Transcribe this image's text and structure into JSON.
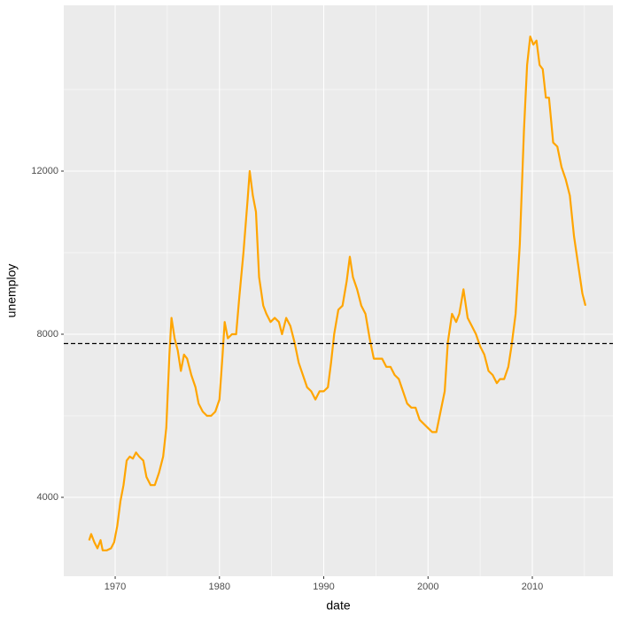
{
  "chart_data": {
    "type": "line",
    "x_label": "date",
    "y_label": "unemploy",
    "series": [
      {
        "color": "#FFA500",
        "x": [
          1967.5,
          1967.7,
          1968.0,
          1968.3,
          1968.6,
          1968.8,
          1969.2,
          1969.6,
          1969.9,
          1970.2,
          1970.5,
          1970.8,
          1971.1,
          1971.4,
          1971.7,
          1972.0,
          1972.3,
          1972.7,
          1973.0,
          1973.4,
          1973.8,
          1974.2,
          1974.6,
          1974.9,
          1975.2,
          1975.4,
          1975.7,
          1976.0,
          1976.3,
          1976.6,
          1976.9,
          1977.3,
          1977.7,
          1978.0,
          1978.4,
          1978.8,
          1979.2,
          1979.6,
          1980.0,
          1980.3,
          1980.5,
          1980.8,
          1981.2,
          1981.6,
          1981.9,
          1982.3,
          1982.7,
          1982.9,
          1983.2,
          1983.5,
          1983.8,
          1984.2,
          1984.5,
          1984.9,
          1985.3,
          1985.7,
          1986.0,
          1986.4,
          1986.8,
          1987.2,
          1987.6,
          1988.0,
          1988.4,
          1988.8,
          1989.2,
          1989.6,
          1990.0,
          1990.4,
          1990.7,
          1991.0,
          1991.4,
          1991.8,
          1992.2,
          1992.5,
          1992.8,
          1993.2,
          1993.6,
          1994.0,
          1994.4,
          1994.8,
          1995.2,
          1995.6,
          1996.0,
          1996.4,
          1996.8,
          1997.2,
          1997.6,
          1998.0,
          1998.4,
          1998.8,
          1999.2,
          1999.6,
          2000.0,
          2000.4,
          2000.8,
          2001.2,
          2001.6,
          2001.9,
          2002.3,
          2002.7,
          2003.0,
          2003.4,
          2003.8,
          2004.2,
          2004.6,
          2005.0,
          2005.4,
          2005.8,
          2006.2,
          2006.6,
          2006.9,
          2007.3,
          2007.7,
          2008.0,
          2008.4,
          2008.8,
          2009.2,
          2009.5,
          2009.8,
          2010.1,
          2010.4,
          2010.7,
          2011.0,
          2011.3,
          2011.6,
          2012.0,
          2012.4,
          2012.8,
          2013.2,
          2013.6,
          2014.0,
          2014.4,
          2014.8,
          2015.1
        ],
        "values": [
          2944,
          3100,
          2900,
          2750,
          2950,
          2700,
          2700,
          2750,
          2900,
          3300,
          3900,
          4300,
          4900,
          5000,
          4950,
          5100,
          5000,
          4900,
          4500,
          4300,
          4300,
          4600,
          5000,
          5700,
          7500,
          8400,
          7900,
          7600,
          7100,
          7500,
          7400,
          7000,
          6700,
          6300,
          6100,
          6000,
          6000,
          6100,
          6400,
          7500,
          8300,
          7900,
          8000,
          8000,
          8900,
          10000,
          11300,
          12000,
          11400,
          11000,
          9400,
          8700,
          8500,
          8300,
          8400,
          8300,
          8000,
          8400,
          8200,
          7800,
          7300,
          7000,
          6700,
          6600,
          6400,
          6600,
          6600,
          6700,
          7300,
          8000,
          8600,
          8700,
          9300,
          9900,
          9400,
          9100,
          8700,
          8500,
          7900,
          7400,
          7400,
          7400,
          7200,
          7200,
          7000,
          6900,
          6600,
          6300,
          6200,
          6200,
          5900,
          5800,
          5700,
          5600,
          5600,
          6100,
          6600,
          7800,
          8500,
          8300,
          8500,
          9100,
          8400,
          8200,
          8000,
          7700,
          7500,
          7100,
          7000,
          6800,
          6900,
          6900,
          7200,
          7700,
          8500,
          10200,
          13000,
          14600,
          15300,
          15100,
          15200,
          14600,
          14500,
          13800,
          13800,
          12700,
          12600,
          12100,
          11800,
          11400,
          10400,
          9700,
          9000,
          8700
        ]
      }
    ],
    "hline": 7771,
    "xlim": [
      1965.07,
      2017.73
    ],
    "xticks": [
      1970,
      1980,
      1990,
      2000,
      2010
    ],
    "xminor": [
      1975,
      1985,
      1995,
      2005,
      2015
    ],
    "ylim": [
      2065,
      16065
    ],
    "yticks": [
      4000,
      8000,
      12000
    ],
    "yminor": [
      6000,
      10000,
      14000
    ],
    "grid": true
  }
}
